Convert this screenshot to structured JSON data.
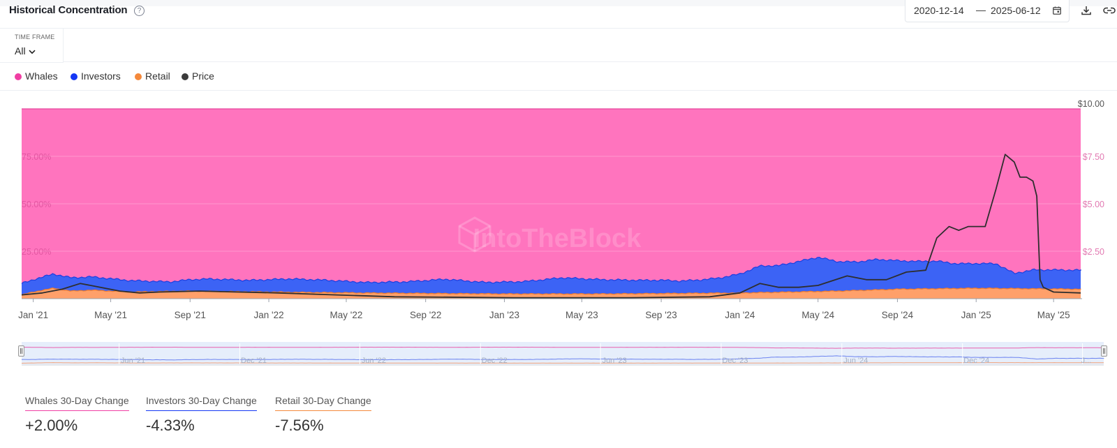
{
  "header": {
    "title": "Historical Concentration",
    "help_icon": "question-circle-icon",
    "date_from": "2020-12-14",
    "date_to": "2025-06-12",
    "calendar_icon": "calendar-icon",
    "download_icon": "download-icon",
    "link_icon": "link-icon"
  },
  "timeframe": {
    "label": "TIME FRAME",
    "value": "All"
  },
  "legend": [
    {
      "name": "Whales",
      "color": "#f03ea3"
    },
    {
      "name": "Investors",
      "color": "#1437f5"
    },
    {
      "name": "Retail",
      "color": "#f5893b"
    },
    {
      "name": "Price",
      "color": "#3b3b3b"
    }
  ],
  "watermark": "IntoTheBlock",
  "chart_data": {
    "type": "area",
    "stacked": true,
    "x_ticks": [
      "Jan '21",
      "May '21",
      "Sep '21",
      "Jan '22",
      "May '22",
      "Sep '22",
      "Jan '23",
      "May '23",
      "Sep '23",
      "Jan '24",
      "May '24",
      "Sep '24",
      "Jan '25",
      "May '25"
    ],
    "x_tick_dates": [
      "2021-01-01",
      "2021-05-01",
      "2021-09-01",
      "2022-01-01",
      "2022-05-01",
      "2022-09-01",
      "2023-01-01",
      "2023-05-01",
      "2023-09-01",
      "2024-01-01",
      "2024-05-01",
      "2024-09-01",
      "2025-01-01",
      "2025-05-01"
    ],
    "y_left_ticks": [
      "25.00%",
      "50.00%",
      "75.00%"
    ],
    "y_left_values": [
      25,
      50,
      75
    ],
    "y_left_range": [
      0,
      100
    ],
    "y_right_ticks": [
      "$2.50",
      "$5.00",
      "$7.50",
      "$10.00"
    ],
    "y_right_values": [
      2.5,
      5,
      7.5,
      10
    ],
    "y_right_range": [
      0,
      10
    ],
    "x_range": [
      "2020-12-14",
      "2025-06-12"
    ],
    "series": [
      {
        "name": "Whales",
        "color": "#ff74be",
        "note_fill": "remainder to 100%"
      },
      {
        "name": "Investors",
        "color": "#3c63f5",
        "x": [
          "2020-12-14",
          "2021-01-01",
          "2021-02-01",
          "2021-03-01",
          "2021-04-01",
          "2021-05-01",
          "2021-06-01",
          "2021-07-01",
          "2021-08-01",
          "2021-09-01",
          "2021-10-01",
          "2021-12-01",
          "2022-02-01",
          "2022-04-01",
          "2022-06-01",
          "2022-08-01",
          "2022-10-01",
          "2022-12-01",
          "2023-02-01",
          "2023-04-01",
          "2023-06-01",
          "2023-08-01",
          "2023-09-01",
          "2023-10-01",
          "2023-11-01",
          "2023-12-01",
          "2024-01-01",
          "2024-02-01",
          "2024-03-01",
          "2024-04-01",
          "2024-05-01",
          "2024-06-01",
          "2024-07-01",
          "2024-08-01",
          "2024-09-01",
          "2024-10-01",
          "2024-11-01",
          "2024-12-01",
          "2025-01-01",
          "2025-02-01",
          "2025-03-01",
          "2025-04-01",
          "2025-05-01",
          "2025-06-12"
        ],
        "values": [
          6,
          6.5,
          7.5,
          7,
          7,
          6.5,
          6,
          5.5,
          5,
          6,
          6.5,
          6,
          7,
          6.5,
          5.5,
          6,
          7.5,
          6,
          6.5,
          8.5,
          7.5,
          7,
          7,
          6.5,
          7,
          8,
          10,
          14,
          14,
          16,
          18,
          15.5,
          15,
          16,
          15,
          14.5,
          14.5,
          13,
          13,
          13,
          8,
          10,
          10,
          10
        ]
      },
      {
        "name": "Retail",
        "color": "#ffa06a",
        "x": [
          "2020-12-14",
          "2021-01-01",
          "2021-02-01",
          "2021-03-01",
          "2021-04-01",
          "2021-05-01",
          "2021-06-01",
          "2021-09-01",
          "2022-01-01",
          "2022-06-01",
          "2023-01-01",
          "2023-06-01",
          "2024-01-01",
          "2024-06-01",
          "2024-09-01",
          "2025-01-01",
          "2025-06-12"
        ],
        "values": [
          2,
          3.5,
          5.5,
          4,
          4.5,
          4,
          3.5,
          4,
          3.5,
          3,
          2.5,
          2.5,
          3,
          4,
          5,
          5.5,
          5
        ]
      },
      {
        "name": "Price",
        "color": "#2e2e2e",
        "x": [
          "2020-12-14",
          "2021-01-15",
          "2021-02-15",
          "2021-03-15",
          "2021-04-15",
          "2021-05-15",
          "2021-06-15",
          "2021-07-15",
          "2021-09-15",
          "2021-11-15",
          "2022-01-15",
          "2022-04-15",
          "2022-07-15",
          "2023-01-15",
          "2023-07-15",
          "2023-11-15",
          "2024-01-01",
          "2024-02-01",
          "2024-03-01",
          "2024-04-01",
          "2024-05-01",
          "2024-06-15",
          "2024-07-15",
          "2024-08-15",
          "2024-09-15",
          "2024-10-15",
          "2024-11-01",
          "2024-11-20",
          "2024-12-05",
          "2024-12-20",
          "2025-01-15",
          "2025-02-01",
          "2025-02-15",
          "2025-03-01",
          "2025-03-10",
          "2025-03-20",
          "2025-03-30",
          "2025-04-05",
          "2025-04-10",
          "2025-04-15",
          "2025-05-01",
          "2025-06-12"
        ],
        "values": [
          0.2,
          0.3,
          0.5,
          0.8,
          0.6,
          0.4,
          0.3,
          0.35,
          0.4,
          0.35,
          0.3,
          0.2,
          0.1,
          0.05,
          0.05,
          0.1,
          0.3,
          0.8,
          0.6,
          0.6,
          0.7,
          1.2,
          1,
          1,
          1.4,
          1.5,
          3.2,
          3.8,
          3.6,
          3.8,
          3.8,
          5.8,
          7.6,
          7.2,
          6.4,
          6.4,
          6.2,
          5.4,
          1,
          0.6,
          0.35,
          0.3
        ]
      }
    ],
    "navigator": {
      "x_ticks": [
        "Jun '21",
        "Dec '21",
        "Jun '22",
        "Dec '22",
        "Jun '23",
        "Dec '23",
        "Jun '24",
        "Dec '24",
        "J..."
      ],
      "x_tick_dates": [
        "2021-06-01",
        "2021-12-01",
        "2022-06-01",
        "2022-12-01",
        "2023-06-01",
        "2023-12-01",
        "2024-06-01",
        "2024-12-01",
        "2025-06-01"
      ]
    }
  },
  "changes": [
    {
      "label": "Whales 30-Day Change",
      "value": "+2.00%",
      "color": "#f03ea3"
    },
    {
      "label": "Investors 30-Day Change",
      "value": "-4.33%",
      "color": "#1437f5"
    },
    {
      "label": "Retail 30-Day Change",
      "value": "-7.56%",
      "color": "#f5893b"
    }
  ]
}
